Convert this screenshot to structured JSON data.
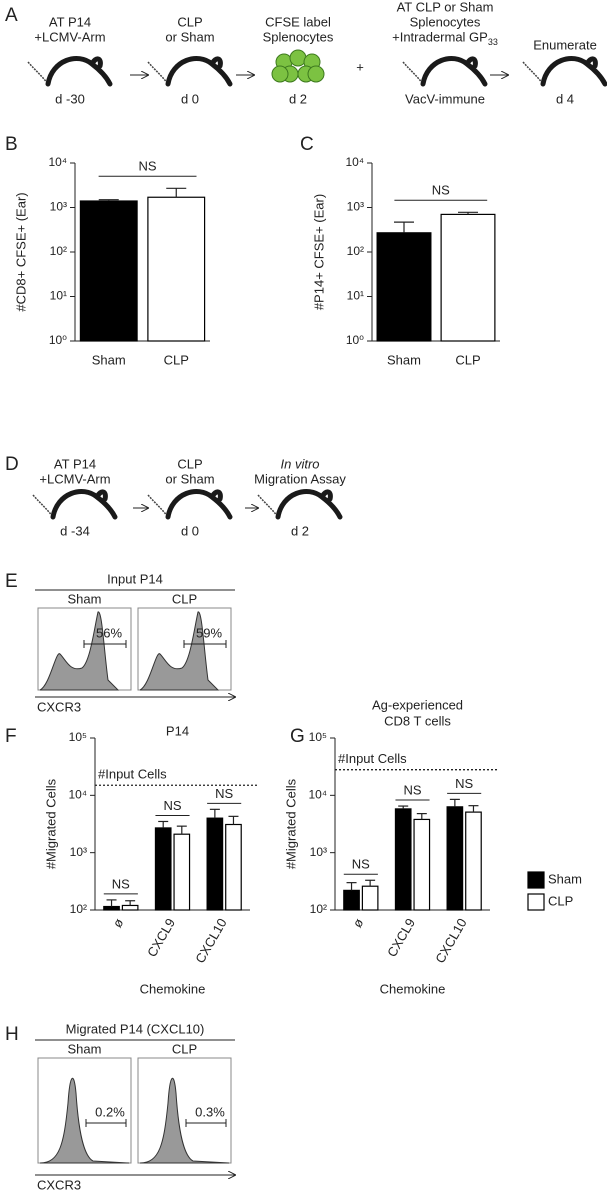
{
  "panel_labels": [
    "A",
    "B",
    "C",
    "D",
    "E",
    "F",
    "G",
    "H"
  ],
  "timeline_A": {
    "steps": [
      {
        "lines": [
          "AT P14",
          "+LCMV-Arm"
        ],
        "below": "d -30"
      },
      {
        "lines": [
          "CLP",
          "or Sham"
        ],
        "below": "d 0"
      },
      {
        "lines": [
          "CFSE label",
          "Splenocytes"
        ],
        "below": "d 2"
      },
      {
        "lines": [
          "AT CLP or Sham",
          "Splenocytes",
          "+Intradermal GP"
        ],
        "subscript": "33",
        "below": "VacV-immune"
      },
      {
        "lines": [
          "Enumerate"
        ],
        "below": "d 4"
      }
    ],
    "plus": "+"
  },
  "timeline_D": {
    "steps": [
      {
        "lines": [
          "AT P14",
          "+LCMV-Arm"
        ],
        "below": "d -34"
      },
      {
        "lines": [
          "CLP",
          "or Sham"
        ],
        "below": "d 0"
      },
      {
        "lines": [
          "In vitro",
          "Migration Assay"
        ],
        "below": "d 2"
      }
    ]
  },
  "flow_E": {
    "title": "Input P14",
    "samples": [
      {
        "name": "Sham",
        "gate": "56%"
      },
      {
        "name": "CLP",
        "gate": "59%"
      }
    ],
    "axis": "CXCR3"
  },
  "flow_H": {
    "title": "Migrated P14 (CXCL10)",
    "samples": [
      {
        "name": "Sham",
        "gate": "0.2%"
      },
      {
        "name": "CLP",
        "gate": "0.3%"
      }
    ],
    "axis": "CXCR3"
  },
  "chart_data": [
    {
      "type": "bar",
      "ylabel": "#CD8+ CFSE+ (Ear)",
      "categories": [
        "Sham",
        "CLP"
      ],
      "values": [
        1400,
        1700
      ],
      "errors": [
        100,
        1000
      ],
      "colors": [
        "#000000",
        "#ffffff"
      ],
      "log_scale": true,
      "ylim": [
        1,
        10000
      ],
      "yticks": [
        {
          "value": 1,
          "label": "10⁰"
        },
        {
          "value": 10,
          "label": "10¹"
        },
        {
          "value": 100,
          "label": "10²"
        },
        {
          "value": 1000,
          "label": "10³"
        },
        {
          "value": 10000,
          "label": "10⁴"
        }
      ],
      "annotations": [
        "NS"
      ]
    },
    {
      "type": "bar",
      "ylabel": "#P14+ CFSE+ (Ear)",
      "categories": [
        "Sham",
        "CLP"
      ],
      "values": [
        270,
        700
      ],
      "errors": [
        200,
        80
      ],
      "colors": [
        "#000000",
        "#ffffff"
      ],
      "log_scale": true,
      "ylim": [
        1,
        10000
      ],
      "yticks": [
        {
          "value": 1,
          "label": "10⁰"
        },
        {
          "value": 10,
          "label": "10¹"
        },
        {
          "value": 100,
          "label": "10²"
        },
        {
          "value": 1000,
          "label": "10³"
        },
        {
          "value": 10000,
          "label": "10⁴"
        }
      ],
      "annotations": [
        "NS"
      ]
    },
    {
      "type": "grouped_bar",
      "title": [
        "P14"
      ],
      "xlabel": "Chemokine",
      "ylabel": "#Migrated Cells",
      "categories": [
        "ø",
        "CXCL9",
        "CXCL10"
      ],
      "series": [
        {
          "name": "Sham",
          "color": "#000000",
          "values": [
            115,
            2700,
            4000
          ],
          "errors": [
            35,
            800,
            1700
          ]
        },
        {
          "name": "CLP",
          "color": "#ffffff",
          "values": [
            120,
            2100,
            3100
          ],
          "errors": [
            25,
            800,
            1200
          ]
        }
      ],
      "log_scale": true,
      "ylim": [
        100,
        100000
      ],
      "yticks": [
        {
          "value": 100,
          "label": "10²"
        },
        {
          "value": 1000,
          "label": "10³"
        },
        {
          "value": 10000,
          "label": "10⁴"
        },
        {
          "value": 100000,
          "label": "10⁵"
        }
      ],
      "reference_line": {
        "value": 15000,
        "label": "#Input Cells"
      },
      "annotations": [
        "NS",
        "NS",
        "NS"
      ],
      "legend": false
    },
    {
      "type": "grouped_bar",
      "title": [
        "Ag-experienced",
        "CD8 T cells"
      ],
      "xlabel": "Chemokine",
      "ylabel": "#Migrated Cells",
      "categories": [
        "ø",
        "CXCL9",
        "CXCL10"
      ],
      "series": [
        {
          "name": "Sham",
          "color": "#000000",
          "values": [
            220,
            5800,
            6300
          ],
          "errors": [
            80,
            700,
            2200
          ]
        },
        {
          "name": "CLP",
          "color": "#ffffff",
          "values": [
            260,
            3800,
            5100
          ],
          "errors": [
            70,
            1000,
            1500
          ]
        }
      ],
      "log_scale": true,
      "ylim": [
        100,
        100000
      ],
      "yticks": [
        {
          "value": 100,
          "label": "10²"
        },
        {
          "value": 1000,
          "label": "10³"
        },
        {
          "value": 10000,
          "label": "10⁴"
        },
        {
          "value": 100000,
          "label": "10⁵"
        }
      ],
      "reference_line": {
        "value": 28000,
        "label": "#Input Cells"
      },
      "annotations": [
        "NS",
        "NS",
        "NS"
      ],
      "legend": "right"
    }
  ]
}
